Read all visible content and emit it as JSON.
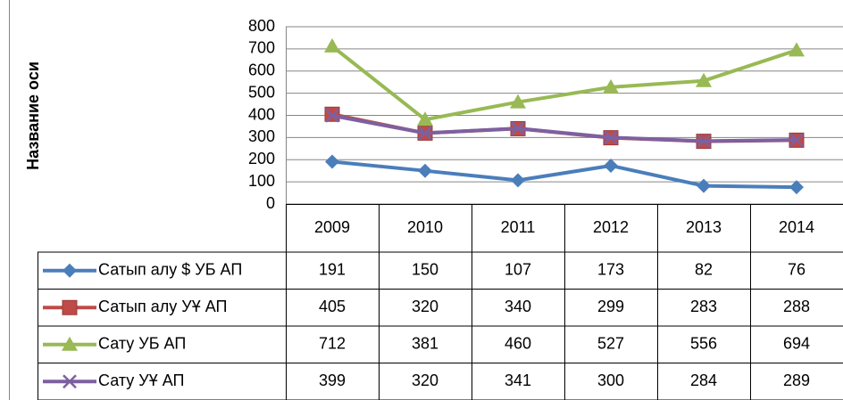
{
  "chart_data": {
    "type": "line",
    "y_axis_label": "Название оси",
    "categories": [
      "2009",
      "2010",
      "2011",
      "2012",
      "2013",
      "2014"
    ],
    "series": [
      {
        "name": "Сатып алу $ УБ АП",
        "color": "#4a7ebb",
        "marker": "diamond",
        "values": [
          191,
          150,
          107,
          173,
          82,
          76
        ]
      },
      {
        "name": "Сатып алу УҰ АП",
        "color": "#be4b48",
        "marker": "square",
        "values": [
          405,
          320,
          340,
          299,
          283,
          288
        ]
      },
      {
        "name": "Сату УБ АП",
        "color": "#98b954",
        "marker": "triangle",
        "values": [
          712,
          381,
          460,
          527,
          556,
          694
        ]
      },
      {
        "name": "Сату УҰ АП",
        "color": "#7d60a0",
        "marker": "x",
        "values": [
          399,
          320,
          341,
          300,
          284,
          289
        ]
      }
    ],
    "ylim": [
      0,
      800
    ],
    "yticks": [
      0,
      100,
      200,
      300,
      400,
      500,
      600,
      700,
      800
    ],
    "grid": true
  }
}
